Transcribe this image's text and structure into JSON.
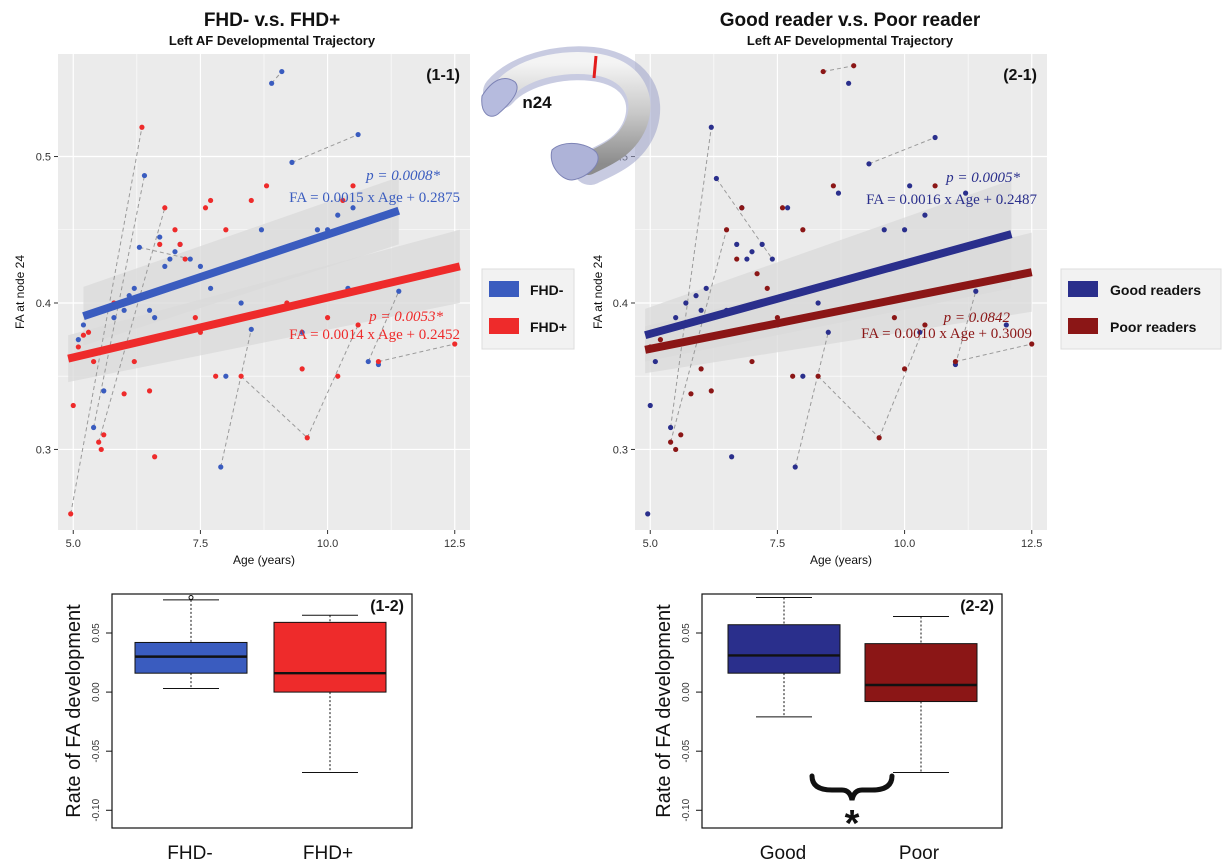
{
  "colors": {
    "fhd_minus": "#3a5cbf",
    "fhd_plus": "#ee2b2b",
    "good": "#2a2f8c",
    "poor": "#8b1616",
    "panel_bg": "#ebebeb",
    "grid": "#ffffff",
    "ci_band": "#d9d9d9"
  },
  "figure": {
    "inset_label": "n24"
  },
  "chart_data": [
    {
      "id": "1-1",
      "type": "scatter",
      "panel_tag": "(1-1)",
      "title": "FHD- v.s. FHD+",
      "subtitle": "Left AF Developmental Trajectory",
      "xlabel": "Age (years)",
      "ylabel": "FA at node 24",
      "xlim": [
        4.7,
        12.8
      ],
      "ylim": [
        0.245,
        0.57
      ],
      "xticks": [
        5.0,
        7.5,
        10.0,
        12.5
      ],
      "xtick_labels": [
        "5.0",
        "7.5",
        "10.0",
        "12.5"
      ],
      "yticks": [
        0.3,
        0.4,
        0.5
      ],
      "ytick_labels": [
        "0.3",
        "0.4",
        "0.5"
      ],
      "grid": true,
      "legend_position": "right",
      "series": [
        {
          "name": "FHD-",
          "color_key": "fhd_minus",
          "fit": {
            "x": [
              5.2,
              11.4
            ],
            "y": [
              0.391,
              0.463
            ],
            "ci": [
              [
                0.371,
                0.411
              ],
              [
                0.44,
                0.486
              ]
            ]
          },
          "p_label": "p = 0.0008*",
          "eq_label": "FA = 0.0015 x Age + 0.2875",
          "points": [
            [
              5.1,
              0.375
            ],
            [
              5.2,
              0.385
            ],
            [
              5.4,
              0.315
            ],
            [
              5.6,
              0.34
            ],
            [
              5.8,
              0.39
            ],
            [
              6.0,
              0.395
            ],
            [
              6.1,
              0.405
            ],
            [
              6.2,
              0.41
            ],
            [
              6.3,
              0.438
            ],
            [
              6.4,
              0.487
            ],
            [
              6.5,
              0.395
            ],
            [
              6.6,
              0.39
            ],
            [
              6.7,
              0.445
            ],
            [
              6.8,
              0.425
            ],
            [
              6.9,
              0.43
            ],
            [
              7.0,
              0.435
            ],
            [
              7.1,
              0.44
            ],
            [
              7.3,
              0.43
            ],
            [
              7.5,
              0.425
            ],
            [
              7.7,
              0.41
            ],
            [
              7.9,
              0.288
            ],
            [
              8.0,
              0.35
            ],
            [
              8.3,
              0.4
            ],
            [
              8.5,
              0.382
            ],
            [
              8.7,
              0.45
            ],
            [
              8.9,
              0.55
            ],
            [
              9.1,
              0.558
            ],
            [
              9.3,
              0.496
            ],
            [
              9.5,
              0.38
            ],
            [
              9.8,
              0.45
            ],
            [
              10.0,
              0.45
            ],
            [
              10.2,
              0.46
            ],
            [
              10.4,
              0.41
            ],
            [
              10.5,
              0.465
            ],
            [
              10.6,
              0.515
            ],
            [
              10.8,
              0.36
            ],
            [
              11.0,
              0.358
            ],
            [
              11.4,
              0.408
            ]
          ],
          "lines": [
            [
              [
                5.4,
                0.315
              ],
              [
                6.4,
                0.487
              ]
            ],
            [
              [
                6.3,
                0.438
              ],
              [
                7.3,
                0.43
              ]
            ],
            [
              [
                8.9,
                0.55
              ],
              [
                9.1,
                0.558
              ]
            ],
            [
              [
                9.3,
                0.496
              ],
              [
                10.6,
                0.515
              ]
            ],
            [
              [
                7.9,
                0.288
              ],
              [
                8.5,
                0.382
              ]
            ],
            [
              [
                10.8,
                0.36
              ],
              [
                11.4,
                0.408
              ]
            ]
          ]
        },
        {
          "name": "FHD+",
          "color_key": "fhd_plus",
          "fit": {
            "x": [
              4.9,
              12.6
            ],
            "y": [
              0.362,
              0.425
            ],
            "ci": [
              [
                0.346,
                0.378
              ],
              [
                0.4,
                0.45
              ]
            ]
          },
          "p_label": "p = 0.0053*",
          "eq_label": "FA = 0.0014 x Age + 0.2452",
          "points": [
            [
              4.95,
              0.256
            ],
            [
              5.0,
              0.33
            ],
            [
              5.1,
              0.37
            ],
            [
              5.2,
              0.378
            ],
            [
              5.3,
              0.38
            ],
            [
              5.4,
              0.36
            ],
            [
              5.5,
              0.305
            ],
            [
              5.55,
              0.3
            ],
            [
              5.6,
              0.31
            ],
            [
              5.8,
              0.4
            ],
            [
              6.0,
              0.338
            ],
            [
              6.2,
              0.36
            ],
            [
              6.35,
              0.52
            ],
            [
              6.5,
              0.34
            ],
            [
              6.6,
              0.295
            ],
            [
              6.7,
              0.44
            ],
            [
              6.8,
              0.465
            ],
            [
              7.0,
              0.45
            ],
            [
              7.1,
              0.44
            ],
            [
              7.2,
              0.43
            ],
            [
              7.4,
              0.39
            ],
            [
              7.5,
              0.38
            ],
            [
              7.6,
              0.465
            ],
            [
              7.7,
              0.47
            ],
            [
              7.8,
              0.35
            ],
            [
              8.0,
              0.45
            ],
            [
              8.3,
              0.35
            ],
            [
              8.5,
              0.47
            ],
            [
              8.8,
              0.48
            ],
            [
              9.2,
              0.4
            ],
            [
              9.5,
              0.355
            ],
            [
              9.6,
              0.308
            ],
            [
              10.0,
              0.39
            ],
            [
              10.2,
              0.35
            ],
            [
              10.3,
              0.47
            ],
            [
              10.5,
              0.48
            ],
            [
              10.6,
              0.385
            ],
            [
              11.0,
              0.36
            ],
            [
              12.5,
              0.372
            ]
          ],
          "lines": [
            [
              [
                4.95,
                0.256
              ],
              [
                6.35,
                0.52
              ]
            ],
            [
              [
                5.5,
                0.305
              ],
              [
                6.8,
                0.465
              ]
            ],
            [
              [
                8.3,
                0.35
              ],
              [
                9.6,
                0.308
              ]
            ],
            [
              [
                9.6,
                0.308
              ],
              [
                10.6,
                0.385
              ]
            ],
            [
              [
                11.0,
                0.36
              ],
              [
                12.5,
                0.372
              ]
            ]
          ]
        }
      ]
    },
    {
      "id": "2-1",
      "type": "scatter",
      "panel_tag": "(2-1)",
      "title": "Good reader v.s. Poor reader",
      "subtitle": "Left AF Developmental Trajectory",
      "xlabel": "Age (years)",
      "ylabel": "FA at node 24",
      "xlim": [
        4.7,
        12.8
      ],
      "ylim": [
        0.245,
        0.57
      ],
      "xticks": [
        5.0,
        7.5,
        10.0,
        12.5
      ],
      "xtick_labels": [
        "5.0",
        "7.5",
        "10.0",
        "12.5"
      ],
      "yticks": [
        0.3,
        0.4,
        0.5
      ],
      "ytick_labels": [
        "0.3",
        "0.4",
        "0.5"
      ],
      "grid": true,
      "legend_position": "right",
      "series": [
        {
          "name": "Good readers",
          "color_key": "good",
          "fit": {
            "x": [
              4.9,
              12.1
            ],
            "y": [
              0.378,
              0.447
            ],
            "ci": [
              [
                0.36,
                0.396
              ],
              [
                0.41,
                0.484
              ]
            ]
          },
          "p_label": "p = 0.0005*",
          "eq_label": "FA = 0.0016 x Age + 0.2487",
          "points": [
            [
              4.95,
              0.256
            ],
            [
              5.0,
              0.33
            ],
            [
              5.1,
              0.36
            ],
            [
              5.3,
              0.37
            ],
            [
              5.4,
              0.315
            ],
            [
              5.5,
              0.39
            ],
            [
              5.7,
              0.4
            ],
            [
              5.9,
              0.405
            ],
            [
              6.0,
              0.395
            ],
            [
              6.1,
              0.41
            ],
            [
              6.2,
              0.52
            ],
            [
              6.3,
              0.485
            ],
            [
              6.5,
              0.395
            ],
            [
              6.6,
              0.295
            ],
            [
              6.7,
              0.44
            ],
            [
              6.8,
              0.465
            ],
            [
              6.9,
              0.43
            ],
            [
              7.0,
              0.435
            ],
            [
              7.2,
              0.44
            ],
            [
              7.4,
              0.43
            ],
            [
              7.5,
              0.385
            ],
            [
              7.7,
              0.465
            ],
            [
              7.85,
              0.288
            ],
            [
              8.0,
              0.35
            ],
            [
              8.3,
              0.4
            ],
            [
              8.5,
              0.38
            ],
            [
              8.7,
              0.475
            ],
            [
              8.9,
              0.55
            ],
            [
              9.3,
              0.495
            ],
            [
              9.6,
              0.45
            ],
            [
              10.0,
              0.45
            ],
            [
              10.1,
              0.48
            ],
            [
              10.3,
              0.38
            ],
            [
              10.4,
              0.46
            ],
            [
              10.6,
              0.513
            ],
            [
              11.0,
              0.358
            ],
            [
              11.2,
              0.475
            ],
            [
              11.4,
              0.408
            ],
            [
              12.0,
              0.385
            ]
          ],
          "lines": [
            [
              [
                5.4,
                0.315
              ],
              [
                6.2,
                0.52
              ]
            ],
            [
              [
                6.3,
                0.485
              ],
              [
                7.4,
                0.43
              ]
            ],
            [
              [
                9.3,
                0.495
              ],
              [
                10.6,
                0.513
              ]
            ],
            [
              [
                7.85,
                0.288
              ],
              [
                8.5,
                0.38
              ]
            ],
            [
              [
                11.0,
                0.358
              ],
              [
                11.4,
                0.408
              ]
            ]
          ]
        },
        {
          "name": "Poor readers",
          "color_key": "poor",
          "fit": {
            "x": [
              4.9,
              12.5
            ],
            "y": [
              0.368,
              0.421
            ],
            "ci": [
              [
                0.352,
                0.384
              ],
              [
                0.394,
                0.448
              ]
            ]
          },
          "p_label": "p = 0.0842",
          "eq_label": "FA = 0.0010 x Age + 0.3009",
          "points": [
            [
              5.0,
              0.37
            ],
            [
              5.2,
              0.375
            ],
            [
              5.4,
              0.305
            ],
            [
              5.5,
              0.3
            ],
            [
              5.6,
              0.31
            ],
            [
              5.8,
              0.338
            ],
            [
              6.0,
              0.355
            ],
            [
              6.2,
              0.34
            ],
            [
              6.5,
              0.45
            ],
            [
              6.7,
              0.43
            ],
            [
              6.8,
              0.465
            ],
            [
              7.0,
              0.36
            ],
            [
              7.1,
              0.42
            ],
            [
              7.3,
              0.41
            ],
            [
              7.5,
              0.39
            ],
            [
              7.6,
              0.465
            ],
            [
              7.8,
              0.35
            ],
            [
              8.0,
              0.45
            ],
            [
              8.3,
              0.35
            ],
            [
              8.4,
              0.558
            ],
            [
              8.6,
              0.48
            ],
            [
              9.0,
              0.562
            ],
            [
              9.5,
              0.308
            ],
            [
              9.8,
              0.39
            ],
            [
              10.0,
              0.355
            ],
            [
              10.4,
              0.385
            ],
            [
              10.6,
              0.48
            ],
            [
              11.0,
              0.36
            ],
            [
              12.5,
              0.372
            ]
          ],
          "lines": [
            [
              [
                8.4,
                0.558
              ],
              [
                9.0,
                0.562
              ]
            ],
            [
              [
                5.4,
                0.305
              ],
              [
                6.5,
                0.45
              ]
            ],
            [
              [
                8.3,
                0.35
              ],
              [
                9.5,
                0.308
              ]
            ],
            [
              [
                9.5,
                0.308
              ],
              [
                10.4,
                0.385
              ]
            ],
            [
              [
                11.0,
                0.36
              ],
              [
                12.5,
                0.372
              ]
            ]
          ]
        }
      ]
    },
    {
      "id": "1-2",
      "type": "box",
      "panel_tag": "(1-2)",
      "ylabel": "Rate of FA development",
      "ylim": [
        -0.115,
        0.083
      ],
      "yticks": [
        -0.1,
        -0.05,
        0.0,
        0.05
      ],
      "ytick_labels": [
        "-0.10",
        "-0.05",
        "0.00",
        "0.05"
      ],
      "categories": [
        "FHD-",
        "FHD+"
      ],
      "boxes": [
        {
          "label": "FHD-",
          "color_key": "fhd_minus",
          "whisker_low": 0.003,
          "q1": 0.016,
          "median": 0.03,
          "q3": 0.042,
          "whisker_high": 0.078,
          "outliers": [
            0.08
          ]
        },
        {
          "label": "FHD+",
          "color_key": "fhd_plus",
          "whisker_low": -0.068,
          "q1": 0.0,
          "median": 0.016,
          "q3": 0.059,
          "whisker_high": 0.065,
          "outliers": []
        }
      ]
    },
    {
      "id": "2-2",
      "type": "box",
      "panel_tag": "(2-2)",
      "ylabel": "Rate of FA development",
      "ylim": [
        -0.115,
        0.083
      ],
      "yticks": [
        -0.1,
        -0.05,
        0.0,
        0.05
      ],
      "ytick_labels": [
        "-0.10",
        "-0.05",
        "0.00",
        "0.05"
      ],
      "categories": [
        "Good",
        "Poor"
      ],
      "significance": "*",
      "boxes": [
        {
          "label": "Good",
          "color_key": "good",
          "whisker_low": -0.021,
          "q1": 0.016,
          "median": 0.031,
          "q3": 0.057,
          "whisker_high": 0.08,
          "outliers": []
        },
        {
          "label": "Poor",
          "color_key": "poor",
          "whisker_low": -0.068,
          "q1": -0.008,
          "median": 0.006,
          "q3": 0.041,
          "whisker_high": 0.064,
          "outliers": []
        }
      ]
    }
  ]
}
